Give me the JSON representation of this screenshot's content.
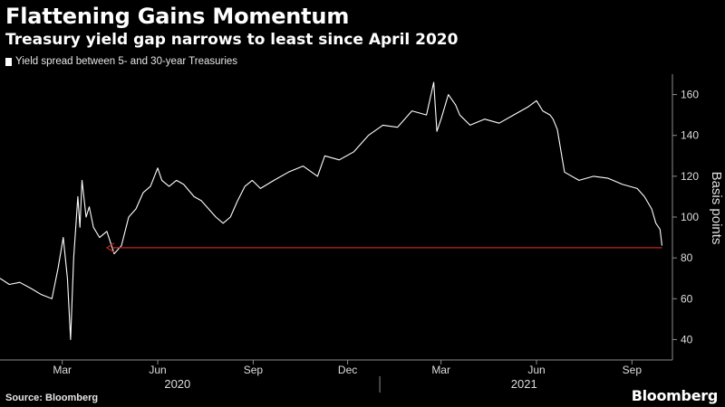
{
  "header": {
    "title": "Flattening Gains Momentum",
    "subtitle": "Treasury yield gap narrows to least since April 2020"
  },
  "footer": {
    "source": "Source: Bloomberg",
    "brand": "Bloomberg"
  },
  "colors": {
    "background": "#000000",
    "series": "#ffffff",
    "arrow": "#c0271f",
    "axis": "#8c8c8c"
  },
  "chart_data": {
    "type": "line",
    "title": "Flattening Gains Momentum",
    "subtitle": "Treasury yield gap narrows to least since April 2020",
    "ylabel": "Basis points",
    "xlabel": "",
    "ylim": [
      30,
      170
    ],
    "yticks": [
      40,
      60,
      80,
      100,
      120,
      140,
      160
    ],
    "xtick_labels": [
      "Mar",
      "Jun",
      "Sep",
      "Dec",
      "Mar",
      "Jun",
      "Sep"
    ],
    "xtick_dates": [
      "2020-03-01",
      "2020-06-01",
      "2020-09-01",
      "2020-12-01",
      "2021-03-01",
      "2021-06-01",
      "2021-09-01"
    ],
    "year_labels": [
      "2020",
      "2021"
    ],
    "xlim": [
      "2020-01-01",
      "2021-10-10"
    ],
    "grid": false,
    "legend_position": "top-left",
    "series": [
      {
        "name": "Yield spread between 5- and 30-year Treasuries",
        "x": [
          "2020-01-01",
          "2020-01-10",
          "2020-01-20",
          "2020-01-31",
          "2020-02-10",
          "2020-02-20",
          "2020-02-26",
          "2020-03-02",
          "2020-03-06",
          "2020-03-09",
          "2020-03-12",
          "2020-03-16",
          "2020-03-18",
          "2020-03-20",
          "2020-03-24",
          "2020-03-27",
          "2020-03-31",
          "2020-04-06",
          "2020-04-13",
          "2020-04-20",
          "2020-04-27",
          "2020-05-04",
          "2020-05-11",
          "2020-05-18",
          "2020-05-25",
          "2020-06-01",
          "2020-06-05",
          "2020-06-12",
          "2020-06-19",
          "2020-06-26",
          "2020-07-06",
          "2020-07-13",
          "2020-07-20",
          "2020-07-27",
          "2020-08-03",
          "2020-08-10",
          "2020-08-17",
          "2020-08-24",
          "2020-08-31",
          "2020-09-08",
          "2020-09-21",
          "2020-10-05",
          "2020-10-19",
          "2020-11-02",
          "2020-11-09",
          "2020-11-23",
          "2020-12-07",
          "2020-12-21",
          "2021-01-04",
          "2021-01-18",
          "2021-02-01",
          "2021-02-15",
          "2021-02-22",
          "2021-02-25",
          "2021-03-01",
          "2021-03-08",
          "2021-03-15",
          "2021-03-19",
          "2021-03-29",
          "2021-04-12",
          "2021-04-26",
          "2021-05-10",
          "2021-05-24",
          "2021-06-01",
          "2021-06-07",
          "2021-06-14",
          "2021-06-17",
          "2021-06-21",
          "2021-06-28",
          "2021-07-12",
          "2021-07-26",
          "2021-08-09",
          "2021-08-23",
          "2021-09-06",
          "2021-09-13",
          "2021-09-20",
          "2021-09-24",
          "2021-09-28",
          "2021-09-30"
        ],
        "values": [
          70,
          67,
          68,
          65,
          62,
          60,
          75,
          90,
          70,
          40,
          80,
          110,
          95,
          118,
          100,
          105,
          95,
          90,
          93,
          82,
          86,
          100,
          104,
          112,
          115,
          124,
          118,
          115,
          118,
          116,
          110,
          108,
          104,
          100,
          97,
          100,
          108,
          115,
          118,
          114,
          118,
          122,
          125,
          120,
          130,
          128,
          132,
          140,
          145,
          144,
          152,
          150,
          166,
          142,
          148,
          160,
          155,
          150,
          145,
          148,
          146,
          150,
          154,
          157,
          152,
          150,
          148,
          143,
          122,
          118,
          120,
          119,
          116,
          114,
          110,
          104,
          97,
          94,
          86
        ]
      }
    ],
    "annotations": [
      {
        "type": "arrow",
        "from_date": "2021-09-30",
        "to_date": "2020-04-13",
        "value": 85
      }
    ]
  }
}
